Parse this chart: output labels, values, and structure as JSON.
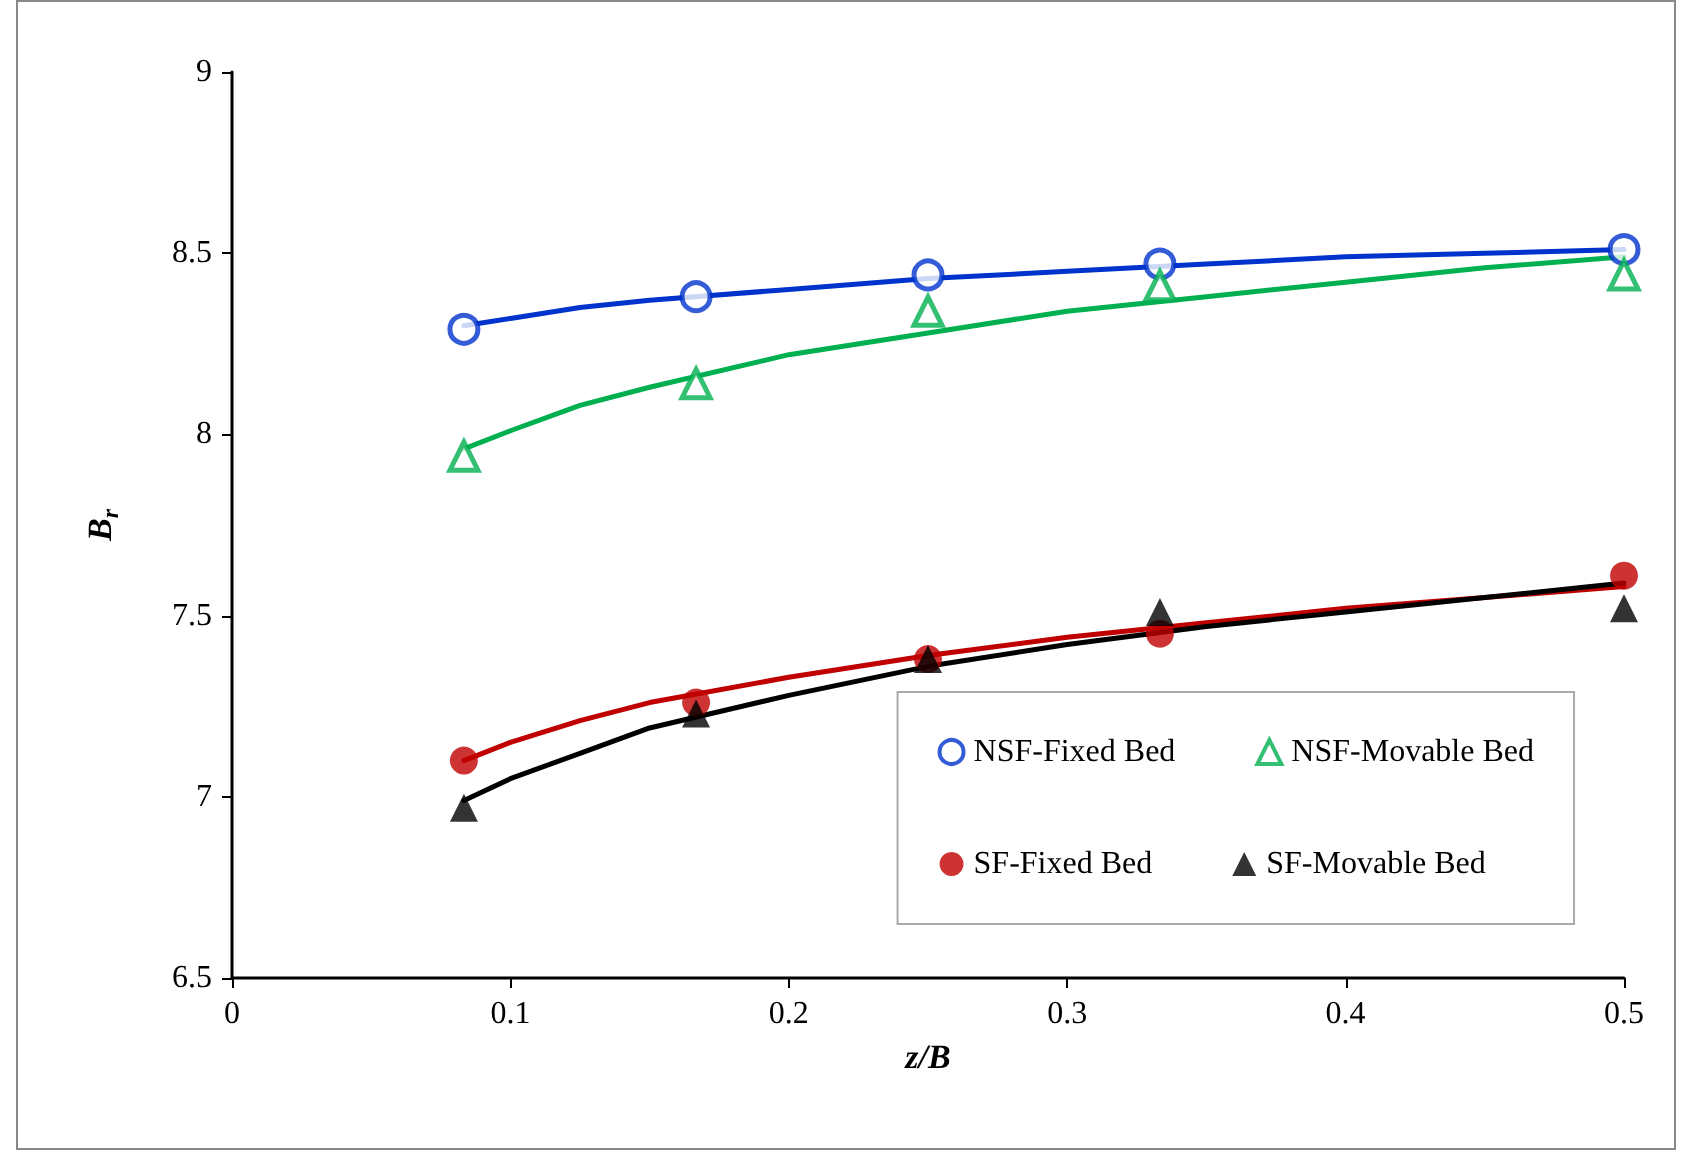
{
  "chart_data": {
    "type": "scatter",
    "xlabel": "z/B",
    "ylabel": "B$_{r}$",
    "x": [
      0.0833,
      0.1667,
      0.25,
      0.3333,
      0.5
    ],
    "series": [
      {
        "name": "NSF-Fixed Bed",
        "color": "#0033cc",
        "marker": "circle",
        "values": [
          8.29,
          8.38,
          8.44,
          8.47,
          8.51
        ]
      },
      {
        "name": "NSF-Movable Bed",
        "color": "#00b050",
        "marker": "triangle",
        "values": [
          7.94,
          8.14,
          8.34,
          8.41,
          8.44
        ]
      },
      {
        "name": "SF-Fixed Bed",
        "color": "#c00000",
        "marker": "circle",
        "values": [
          7.1,
          7.26,
          7.38,
          7.45,
          7.61
        ]
      },
      {
        "name": "SF-Movable Bed",
        "color": "#000000",
        "marker": "triangle",
        "values": [
          6.97,
          7.23,
          7.38,
          7.51,
          7.52
        ]
      },
      {
        "type": "line",
        "color": "#0033cc",
        "marker": "none",
        "x": [
          0.0833,
          0.1,
          0.125,
          0.15,
          0.2,
          0.25,
          0.3,
          0.35,
          0.4,
          0.45,
          0.5
        ],
        "values": [
          8.3,
          8.32,
          8.35,
          8.37,
          8.4,
          8.43,
          8.45,
          8.47,
          8.49,
          8.5,
          8.51
        ]
      },
      {
        "type": "line",
        "color": "#00b050",
        "marker": "none",
        "x": [
          0.0833,
          0.1,
          0.125,
          0.15,
          0.2,
          0.25,
          0.3,
          0.35,
          0.4,
          0.45,
          0.5
        ],
        "values": [
          7.96,
          8.01,
          8.08,
          8.13,
          8.22,
          8.28,
          8.34,
          8.38,
          8.42,
          8.46,
          8.49
        ]
      },
      {
        "type": "line",
        "color": "#c00000",
        "marker": "none",
        "x": [
          0.0833,
          0.1,
          0.125,
          0.15,
          0.2,
          0.25,
          0.3,
          0.35,
          0.4,
          0.45,
          0.5
        ],
        "values": [
          7.1,
          7.15,
          7.21,
          7.26,
          7.33,
          7.39,
          7.44,
          7.48,
          7.52,
          7.55,
          7.58
        ]
      },
      {
        "type": "line",
        "color": "#000000",
        "marker": "none",
        "x": [
          0.0833,
          0.1,
          0.125,
          0.15,
          0.2,
          0.25,
          0.3,
          0.35,
          0.4,
          0.45,
          0.5
        ],
        "values": [
          6.99,
          7.05,
          7.12,
          7.19,
          7.28,
          7.36,
          7.42,
          7.47,
          7.51,
          7.55,
          7.59
        ]
      }
    ],
    "xlim": [
      0,
      0.5
    ],
    "xticks": [
      0,
      0.1,
      0.2,
      0.3,
      0.4,
      0.5
    ],
    "ylim": [
      6.5,
      9
    ],
    "yticks": [
      6.5,
      7,
      7.5,
      8,
      8.5,
      9
    ],
    "grid": false,
    "legend": "bottom right"
  }
}
